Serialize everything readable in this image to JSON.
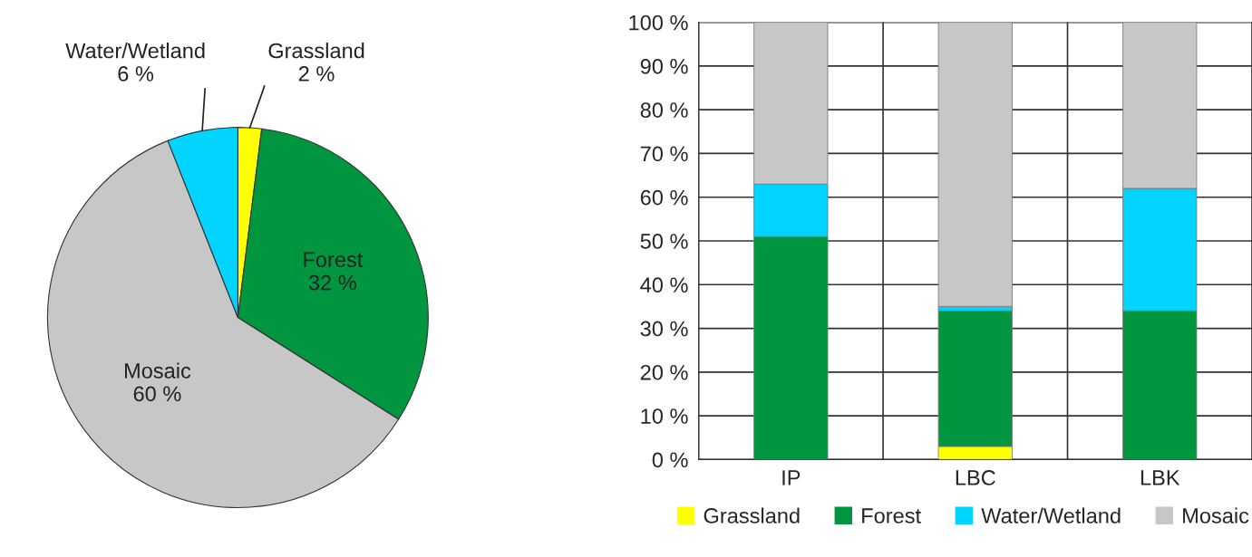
{
  "chart_data": [
    {
      "type": "pie",
      "categories": [
        "Grassland",
        "Forest",
        "Mosaic",
        "Water/Wetland"
      ],
      "values": [
        2,
        32,
        60,
        6
      ],
      "colors": [
        "#ffff00",
        "#009640",
        "#c6c7c6",
        "#00d4ff"
      ],
      "value_labels": [
        "2 %",
        "32 %",
        "60 %",
        "6 %"
      ]
    },
    {
      "type": "bar",
      "stacked": true,
      "categories": [
        "IP",
        "LBC",
        "LBK"
      ],
      "series": [
        {
          "name": "Grassland",
          "color": "#ffff00",
          "values": [
            0,
            3,
            0
          ]
        },
        {
          "name": "Forest",
          "color": "#009640",
          "values": [
            51,
            31,
            34
          ]
        },
        {
          "name": "Water/Wetland",
          "color": "#00d4ff",
          "values": [
            12,
            1,
            28
          ]
        },
        {
          "name": "Mosaic",
          "color": "#c6c7c6",
          "values": [
            37,
            65,
            38
          ]
        }
      ],
      "ylim": [
        0,
        100
      ],
      "yticks": [
        {
          "value": 0,
          "label": "0 %"
        },
        {
          "value": 10,
          "label": "10 %"
        },
        {
          "value": 20,
          "label": "20 %"
        },
        {
          "value": 30,
          "label": "30 %"
        },
        {
          "value": 40,
          "label": "40 %"
        },
        {
          "value": 50,
          "label": "50 %"
        },
        {
          "value": 60,
          "label": "60 %"
        },
        {
          "value": 70,
          "label": "70 %"
        },
        {
          "value": 80,
          "label": "80 %"
        },
        {
          "value": 90,
          "label": "90 %"
        },
        {
          "value": 100,
          "label": "100 %"
        }
      ],
      "grid": true,
      "legend": "bottom"
    }
  ]
}
